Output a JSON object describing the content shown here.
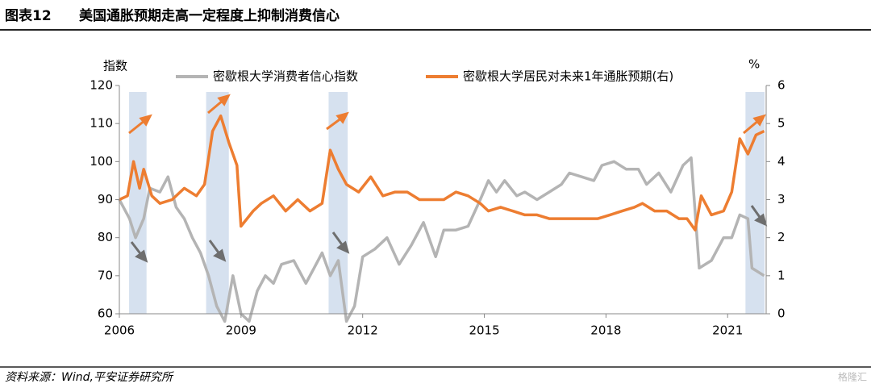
{
  "header": {
    "label": "图表12",
    "title": "美国通胀预期走高一定程度上抑制消费信心"
  },
  "chart_data": {
    "type": "line",
    "y_label": "指数",
    "y2_label": "%",
    "xlim": [
      2006,
      2021.95
    ],
    "xticks": [
      2006,
      2009,
      2012,
      2015,
      2018,
      2021
    ],
    "ylim": [
      60,
      120
    ],
    "yticks": [
      60,
      70,
      80,
      90,
      100,
      110,
      120
    ],
    "y2lim": [
      0,
      6
    ],
    "y2ticks": [
      0,
      1,
      2,
      3,
      4,
      5,
      6
    ],
    "highlight_periods": [
      [
        2006.24,
        2006.67
      ],
      [
        2008.14,
        2008.7
      ],
      [
        2011.16,
        2011.63
      ],
      [
        2021.44,
        2021.91
      ]
    ],
    "highlight_color": "#d6e1ef",
    "series": [
      {
        "name": "密歇根大学消费者信心指数",
        "color": "#b4b4b4",
        "x": [
          2006.0,
          2006.25,
          2006.4,
          2006.6,
          2006.75,
          2007.0,
          2007.2,
          2007.4,
          2007.6,
          2007.8,
          2008.0,
          2008.2,
          2008.4,
          2008.6,
          2008.8,
          2009.0,
          2009.2,
          2009.4,
          2009.6,
          2009.8,
          2010.0,
          2010.3,
          2010.6,
          2010.8,
          2011.0,
          2011.2,
          2011.4,
          2011.6,
          2011.8,
          2012.0,
          2012.3,
          2012.6,
          2012.9,
          2013.2,
          2013.5,
          2013.8,
          2014.0,
          2014.3,
          2014.6,
          2014.9,
          2015.1,
          2015.3,
          2015.5,
          2015.8,
          2016.0,
          2016.3,
          2016.6,
          2016.9,
          2017.1,
          2017.4,
          2017.7,
          2017.9,
          2018.2,
          2018.5,
          2018.8,
          2019.0,
          2019.3,
          2019.6,
          2019.9,
          2020.1,
          2020.3,
          2020.6,
          2020.9,
          2021.1,
          2021.3,
          2021.5,
          2021.6,
          2021.9
        ],
        "values": [
          90,
          85,
          80,
          85,
          93,
          92,
          96,
          88,
          85,
          80,
          76,
          70,
          62,
          58,
          70,
          60,
          58,
          66,
          70,
          68,
          73,
          74,
          68,
          72,
          76,
          70,
          74,
          58,
          62,
          75,
          77,
          80,
          73,
          78,
          84,
          75,
          82,
          82,
          83,
          90,
          95,
          92,
          95,
          91,
          92,
          90,
          92,
          94,
          97,
          96,
          95,
          99,
          100,
          98,
          98,
          94,
          97,
          92,
          99,
          101,
          72,
          74,
          80,
          80,
          86,
          85,
          72,
          70
        ]
      },
      {
        "name": "密歇根大学居民对未来1年通胀预期(右)",
        "color": "#ed7d31",
        "axis": "y2",
        "x": [
          2006.0,
          2006.2,
          2006.35,
          2006.5,
          2006.6,
          2006.8,
          2007.0,
          2007.3,
          2007.6,
          2007.9,
          2008.1,
          2008.3,
          2008.5,
          2008.7,
          2008.9,
          2009.0,
          2009.3,
          2009.5,
          2009.8,
          2010.1,
          2010.4,
          2010.7,
          2011.0,
          2011.2,
          2011.4,
          2011.6,
          2011.9,
          2012.2,
          2012.5,
          2012.8,
          2013.1,
          2013.4,
          2013.7,
          2014.0,
          2014.3,
          2014.6,
          2014.9,
          2015.1,
          2015.4,
          2015.7,
          2016.0,
          2016.3,
          2016.6,
          2016.9,
          2017.2,
          2017.5,
          2017.8,
          2018.1,
          2018.4,
          2018.7,
          2018.9,
          2019.2,
          2019.5,
          2019.8,
          2020.0,
          2020.2,
          2020.35,
          2020.6,
          2020.9,
          2021.1,
          2021.3,
          2021.5,
          2021.7,
          2021.9
        ],
        "values": [
          3.0,
          3.1,
          4.0,
          3.3,
          3.8,
          3.1,
          2.9,
          3.0,
          3.3,
          3.1,
          3.4,
          4.8,
          5.2,
          4.5,
          3.9,
          2.3,
          2.7,
          2.9,
          3.1,
          2.7,
          3.0,
          2.7,
          2.9,
          4.3,
          3.8,
          3.4,
          3.2,
          3.6,
          3.1,
          3.2,
          3.2,
          3.0,
          3.0,
          3.0,
          3.2,
          3.1,
          2.9,
          2.7,
          2.8,
          2.7,
          2.6,
          2.6,
          2.5,
          2.5,
          2.5,
          2.5,
          2.5,
          2.6,
          2.7,
          2.8,
          2.9,
          2.7,
          2.7,
          2.5,
          2.5,
          2.2,
          3.1,
          2.6,
          2.7,
          3.2,
          4.6,
          4.2,
          4.7,
          4.8
        ]
      }
    ]
  },
  "footer": {
    "source": "资料来源：Wind,平安证券研究所",
    "watermark": "格隆汇"
  }
}
